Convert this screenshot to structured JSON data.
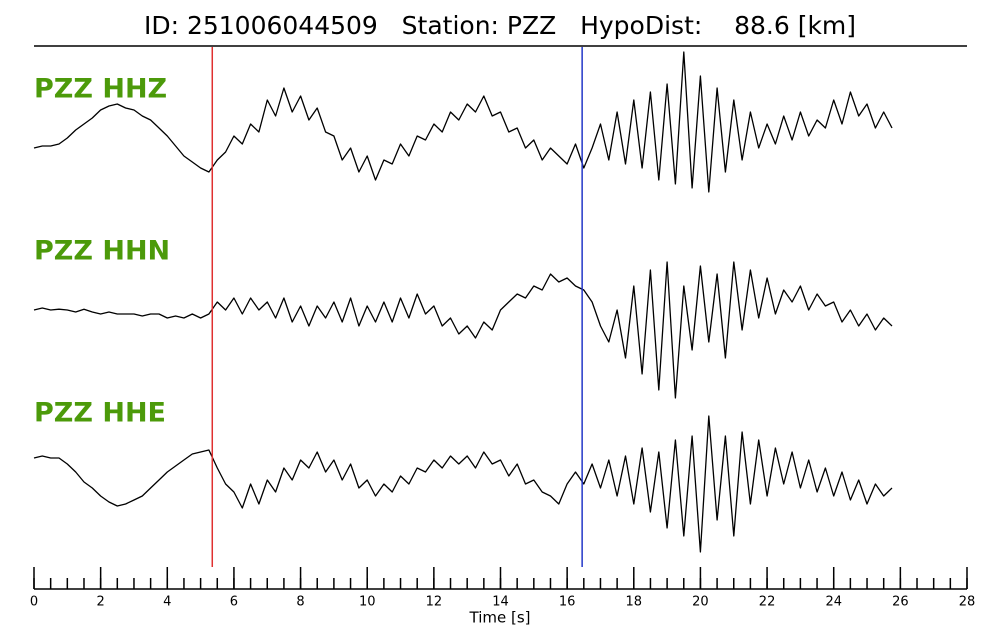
{
  "chart_data": {
    "type": "seismogram",
    "title": "ID: 251006044509   Station: PZZ   HypoDist:    88.6 [km]",
    "xlabel": "Time [s]",
    "xlim": [
      0,
      28
    ],
    "xticks": [
      0,
      2,
      4,
      6,
      8,
      10,
      12,
      14,
      16,
      18,
      20,
      22,
      24,
      26,
      28
    ],
    "xminorticks": [
      0,
      0.5,
      1,
      1.5,
      2,
      2.5,
      3,
      3.5,
      4,
      4.5,
      5,
      5.5,
      6,
      6.5,
      7,
      7.5,
      8,
      8.5,
      9,
      9.5,
      10,
      10.5,
      11,
      11.5,
      12,
      12.5,
      13,
      13.5,
      14,
      14.5,
      15,
      15.5,
      16,
      16.5,
      17,
      17.5,
      18,
      18.5,
      19,
      19.5,
      20,
      20.5,
      21,
      21.5,
      22,
      22.5,
      23,
      23.5,
      24,
      24.5,
      25,
      25.5,
      26,
      26.5,
      27,
      27.5,
      28
    ],
    "ylim": [
      -2.5,
      2.5
    ],
    "label_color": "#4c9a0a",
    "x": [
      0,
      0.25,
      0.5,
      0.75,
      1,
      1.25,
      1.5,
      1.75,
      2,
      2.25,
      2.5,
      2.75,
      3,
      3.25,
      3.5,
      3.75,
      4,
      4.25,
      4.5,
      4.75,
      5,
      5.25,
      5.5,
      5.75,
      6,
      6.25,
      6.5,
      6.75,
      7,
      7.25,
      7.5,
      7.75,
      8,
      8.25,
      8.5,
      8.75,
      9,
      9.25,
      9.5,
      9.75,
      10,
      10.25,
      10.5,
      10.75,
      11,
      11.25,
      11.5,
      11.75,
      12,
      12.25,
      12.5,
      12.75,
      13,
      13.25,
      13.5,
      13.75,
      14,
      14.25,
      14.5,
      14.75,
      15,
      15.25,
      15.5,
      15.75,
      16,
      16.25,
      16.5,
      16.75,
      17,
      17.25,
      17.5,
      17.75,
      18,
      18.25,
      18.5,
      18.75,
      19,
      19.25,
      19.5,
      19.75,
      20,
      20.25,
      20.5,
      20.75,
      21,
      21.25,
      21.5,
      21.75,
      22,
      22.25,
      22.5,
      22.75,
      23,
      23.25,
      23.5,
      23.75,
      24,
      24.25,
      24.5,
      24.75,
      25,
      25.25,
      25.5,
      25.75
    ],
    "series": [
      {
        "name": "PZZ HHZ",
        "color": "#000000",
        "values": [
          0,
          0.05,
          0.05,
          0.1,
          0.25,
          0.45,
          0.6,
          0.75,
          0.95,
          1.05,
          1.1,
          1.0,
          0.95,
          0.8,
          0.7,
          0.5,
          0.3,
          0.05,
          -0.2,
          -0.35,
          -0.5,
          -0.6,
          -0.3,
          -0.1,
          0.3,
          0.1,
          0.6,
          0.4,
          1.2,
          0.8,
          1.5,
          0.9,
          1.3,
          0.7,
          1.0,
          0.4,
          0.3,
          -0.3,
          0.0,
          -0.6,
          -0.2,
          -0.8,
          -0.3,
          -0.4,
          0.1,
          -0.2,
          0.3,
          0.2,
          0.6,
          0.4,
          0.9,
          0.7,
          1.1,
          0.9,
          1.3,
          0.8,
          0.9,
          0.4,
          0.5,
          0.0,
          0.2,
          -0.3,
          0.0,
          -0.2,
          -0.4,
          0.1,
          -0.5,
          0.0,
          0.6,
          -0.3,
          0.9,
          -0.4,
          1.2,
          -0.5,
          1.4,
          -0.8,
          1.6,
          -0.9,
          2.4,
          -1.0,
          1.8,
          -1.1,
          1.5,
          -0.6,
          1.2,
          -0.3,
          0.9,
          0.0,
          0.6,
          0.1,
          0.8,
          0.2,
          0.9,
          0.3,
          0.7,
          0.5,
          1.2,
          0.6,
          1.4,
          0.8,
          1.1,
          0.5,
          0.9,
          0.5
        ]
      },
      {
        "name": "PZZ HHN",
        "color": "#000000",
        "values": [
          0,
          0.05,
          0,
          0.02,
          0,
          -0.05,
          0.02,
          -0.05,
          -0.1,
          -0.05,
          -0.1,
          -0.1,
          -0.1,
          -0.15,
          -0.1,
          -0.1,
          -0.2,
          -0.15,
          -0.2,
          -0.1,
          -0.2,
          -0.1,
          0.2,
          0.0,
          0.3,
          -0.1,
          0.3,
          0.0,
          0.2,
          -0.2,
          0.3,
          -0.3,
          0.1,
          -0.4,
          0.1,
          -0.2,
          0.2,
          -0.3,
          0.3,
          -0.4,
          0.1,
          -0.3,
          0.2,
          -0.3,
          0.3,
          -0.2,
          0.4,
          -0.1,
          0.1,
          -0.4,
          -0.2,
          -0.6,
          -0.4,
          -0.7,
          -0.3,
          -0.5,
          0.0,
          0.2,
          0.4,
          0.3,
          0.6,
          0.5,
          0.9,
          0.7,
          0.8,
          0.6,
          0.5,
          0.2,
          -0.4,
          -0.8,
          0.0,
          -1.2,
          0.6,
          -1.6,
          1.0,
          -2.0,
          1.2,
          -2.2,
          0.6,
          -1.0,
          1.1,
          -0.8,
          0.9,
          -1.2,
          1.2,
          -0.5,
          1.0,
          -0.2,
          0.8,
          -0.1,
          0.5,
          0.2,
          0.6,
          0.0,
          0.4,
          0.1,
          0.2,
          -0.3,
          0.0,
          -0.4,
          -0.1,
          -0.5,
          -0.2,
          -0.4
        ]
      },
      {
        "name": "PZZ HHE",
        "color": "#000000",
        "values": [
          0.35,
          0.4,
          0.35,
          0.35,
          0.2,
          0.0,
          -0.25,
          -0.4,
          -0.6,
          -0.75,
          -0.85,
          -0.8,
          -0.7,
          -0.6,
          -0.4,
          -0.2,
          0.0,
          0.15,
          0.3,
          0.45,
          0.5,
          0.55,
          0.1,
          -0.3,
          -0.5,
          -0.9,
          -0.3,
          -0.8,
          -0.2,
          -0.5,
          0.1,
          -0.2,
          0.3,
          0.1,
          0.5,
          0.0,
          0.3,
          -0.2,
          0.2,
          -0.4,
          -0.2,
          -0.6,
          -0.3,
          -0.5,
          -0.1,
          -0.3,
          0.1,
          0.0,
          0.3,
          0.1,
          0.4,
          0.2,
          0.4,
          0.1,
          0.5,
          0.2,
          0.3,
          -0.1,
          0.2,
          -0.3,
          -0.2,
          -0.5,
          -0.6,
          -0.8,
          -0.3,
          0.0,
          -0.3,
          0.2,
          -0.4,
          0.3,
          -0.6,
          0.4,
          -0.8,
          0.6,
          -1.0,
          0.5,
          -1.4,
          0.8,
          -1.6,
          0.9,
          -2.0,
          1.4,
          -1.2,
          0.9,
          -1.6,
          1.0,
          -0.8,
          0.8,
          -0.6,
          0.6,
          -0.3,
          0.5,
          -0.4,
          0.3,
          -0.5,
          0.1,
          -0.6,
          0.0,
          -0.7,
          -0.2,
          -0.8,
          -0.3,
          -0.6,
          -0.4
        ]
      }
    ],
    "vlines": [
      {
        "x": 5.35,
        "color": "#e03030"
      },
      {
        "x": 16.45,
        "color": "#2438c8"
      }
    ]
  }
}
